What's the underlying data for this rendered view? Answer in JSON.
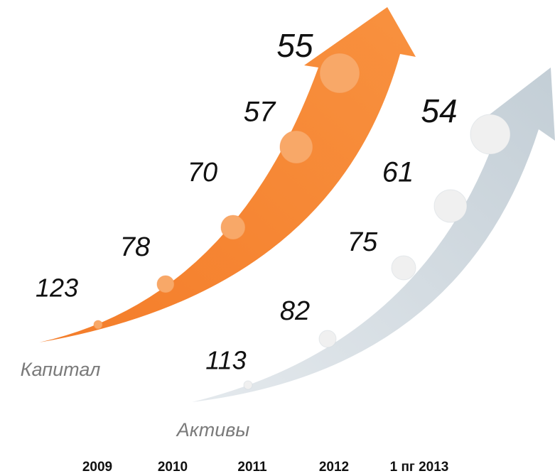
{
  "chart_data": {
    "type": "arrow",
    "categories": [
      "2009",
      "2010",
      "2011",
      "2012",
      "1 пг 2013"
    ],
    "series": [
      {
        "name": "Капитал",
        "color": "#f58a3c",
        "values": [
          123,
          78,
          70,
          57,
          55
        ]
      },
      {
        "name": "Активы",
        "color": "#c9d3da",
        "values": [
          113,
          82,
          75,
          61,
          54
        ]
      }
    ]
  }
}
